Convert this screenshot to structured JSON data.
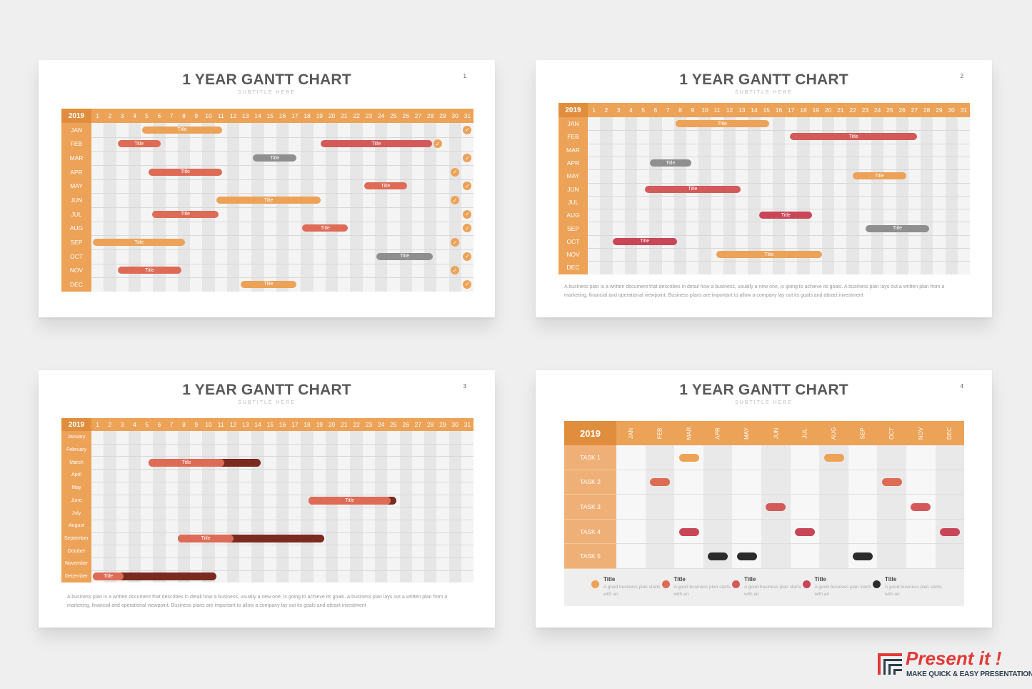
{
  "colors": {
    "orange": "#eca257",
    "coral": "#de6b55",
    "red": "#d45a5a",
    "crimson": "#c94558",
    "gray": "#8f8f8f",
    "dark": "#7a2a1e",
    "black": "#2b2b2b",
    "header": "#eca257",
    "year": "#e08e3e"
  },
  "slides": [
    {
      "title": "1 YEAR GANTT CHART",
      "subtitle": "SUBTITLE HERE",
      "number": "1",
      "year": "2019",
      "months": [
        "JAN",
        "FEB",
        "MAR",
        "APR",
        "MAY",
        "JUN",
        "JUL",
        "AUG",
        "SEP",
        "OCT",
        "NOV",
        "DEC"
      ],
      "days": [
        "1",
        "2",
        "3",
        "4",
        "5",
        "6",
        "7",
        "8",
        "9",
        "10",
        "11",
        "12",
        "13",
        "14",
        "15",
        "16",
        "17",
        "18",
        "19",
        "20",
        "21",
        "22",
        "23",
        "24",
        "25",
        "26",
        "27",
        "28",
        "29",
        "30",
        "31"
      ],
      "tasks": [
        {
          "month": 0,
          "start": 5,
          "end": 11.5,
          "color": "orange",
          "label": "Title"
        },
        {
          "month": 1,
          "start": 3,
          "end": 6.5,
          "color": "coral",
          "label": "Title"
        },
        {
          "month": 1,
          "start": 19.5,
          "end": 28.5,
          "color": "red",
          "label": "Title"
        },
        {
          "month": 2,
          "start": 14,
          "end": 17.5,
          "color": "gray",
          "label": "Title"
        },
        {
          "month": 3,
          "start": 5.5,
          "end": 11.5,
          "color": "coral",
          "label": "Title"
        },
        {
          "month": 4,
          "start": 23,
          "end": 26.5,
          "color": "coral",
          "label": "Title"
        },
        {
          "month": 5,
          "start": 11,
          "end": 19.5,
          "color": "orange",
          "label": "Title"
        },
        {
          "month": 6,
          "start": 5.8,
          "end": 11.2,
          "color": "coral",
          "label": "Title"
        },
        {
          "month": 7,
          "start": 18,
          "end": 21.7,
          "color": "coral",
          "label": "Title"
        },
        {
          "month": 8,
          "start": 1,
          "end": 8.5,
          "color": "orange",
          "label": "Title"
        },
        {
          "month": 9,
          "start": 24,
          "end": 28.6,
          "color": "gray",
          "label": "Title"
        },
        {
          "month": 10,
          "start": 3,
          "end": 8.2,
          "color": "coral",
          "label": "Title"
        },
        {
          "month": 11,
          "start": 13,
          "end": 17.5,
          "color": "orange",
          "label": "Title"
        }
      ],
      "checks": [
        {
          "month": 0,
          "day": 31
        },
        {
          "month": 1,
          "day": 28.6
        },
        {
          "month": 2,
          "day": 31
        },
        {
          "month": 3,
          "day": 30
        },
        {
          "month": 4,
          "day": 31
        },
        {
          "month": 5,
          "day": 30
        },
        {
          "month": 6,
          "day": 31
        },
        {
          "month": 7,
          "day": 31
        },
        {
          "month": 8,
          "day": 30
        },
        {
          "month": 9,
          "day": 31
        },
        {
          "month": 10,
          "day": 30
        },
        {
          "month": 11,
          "day": 31
        }
      ]
    },
    {
      "title": "1 YEAR GANTT CHART",
      "subtitle": "SUBTITLE HERE",
      "number": "2",
      "year": "2019",
      "months": [
        "JAN",
        "FEB",
        "MAR",
        "APR",
        "MAY",
        "JUN",
        "JUL",
        "AUG",
        "SEP",
        "OCT",
        "NOV",
        "DEC"
      ],
      "tasks": [
        {
          "month": 0,
          "start": 8,
          "end": 15.6,
          "color": "orange",
          "label": "Title"
        },
        {
          "month": 1,
          "start": 17.3,
          "end": 27.6,
          "color": "red",
          "label": "Title"
        },
        {
          "month": 3,
          "start": 5.9,
          "end": 9.3,
          "color": "gray",
          "label": "Title"
        },
        {
          "month": 4,
          "start": 22.4,
          "end": 26.7,
          "color": "orange",
          "label": "Title"
        },
        {
          "month": 5,
          "start": 5.5,
          "end": 13.3,
          "color": "red",
          "label": "Title"
        },
        {
          "month": 7,
          "start": 14.8,
          "end": 19.1,
          "color": "crimson",
          "label": "Title"
        },
        {
          "month": 8,
          "start": 23.4,
          "end": 28.6,
          "color": "gray",
          "label": "Title"
        },
        {
          "month": 9,
          "start": 2.9,
          "end": 8.1,
          "color": "crimson",
          "label": "Title"
        },
        {
          "month": 10,
          "start": 11.3,
          "end": 19.9,
          "color": "orange",
          "label": "Title"
        }
      ],
      "description": "A business plan is a written document that describes in detail how a business, usually a new one, is going to achieve its goals. A business plan lays out a written plan from a marketing, financial and operational viewpoint. Business plans are important to allow a company lay out its goals and attract investment"
    },
    {
      "title": "1 YEAR GANTT CHART",
      "subtitle": "SUBTITLE HERE",
      "number": "3",
      "year": "2019",
      "months": [
        "January",
        "February",
        "March",
        "April",
        "May",
        "June",
        "July",
        "August",
        "September",
        "October",
        "November",
        "December"
      ],
      "tasks": [
        {
          "month": 2,
          "start": 5.5,
          "end": 14.6,
          "progress": 0.68,
          "label": "Title"
        },
        {
          "month": 5,
          "start": 18.5,
          "end": 25.6,
          "progress": 0.94,
          "label": "Title"
        },
        {
          "month": 8,
          "start": 7.9,
          "end": 19.8,
          "progress": 0.38,
          "label": "Title"
        },
        {
          "month": 11,
          "start": 1,
          "end": 11,
          "progress": 0.25,
          "label": "Title"
        }
      ],
      "description": "A business plan is a written document that describes in detail how a business, usually a new one, is going to achieve its goals. A business plan lays out a written plan from a marketing, financial and operational viewpoint. Business plans are important to allow a company lay out its goals and attract investment"
    },
    {
      "title": "1 YEAR GANTT CHART",
      "subtitle": "SUBTITLE HERE",
      "number": "4",
      "year": "2019",
      "months": [
        "JAN",
        "FEB",
        "MAR",
        "APR",
        "MAY",
        "JUN",
        "JUL",
        "AUG",
        "SEP",
        "OCT",
        "NOV",
        "DEC"
      ],
      "rows": [
        "TASK 1",
        "TASK 2",
        "TASK 3",
        "TASK 4",
        "TASK 5"
      ],
      "marks": [
        {
          "row": 0,
          "month": 2,
          "color": "orange"
        },
        {
          "row": 0,
          "month": 7,
          "color": "orange"
        },
        {
          "row": 1,
          "month": 1,
          "color": "coral"
        },
        {
          "row": 1,
          "month": 9,
          "color": "coral"
        },
        {
          "row": 2,
          "month": 5,
          "color": "red"
        },
        {
          "row": 2,
          "month": 10,
          "color": "red"
        },
        {
          "row": 3,
          "month": 2,
          "color": "crimson"
        },
        {
          "row": 3,
          "month": 6,
          "color": "crimson"
        },
        {
          "row": 3,
          "month": 11,
          "color": "crimson"
        },
        {
          "row": 4,
          "month": 3,
          "color": "black"
        },
        {
          "row": 4,
          "month": 4,
          "color": "black"
        },
        {
          "row": 4,
          "month": 8,
          "color": "black"
        }
      ],
      "legend": [
        {
          "title": "Title",
          "text": "A good business plan starts with an",
          "color": "orange"
        },
        {
          "title": "Title",
          "text": "A good business plan starts with an",
          "color": "coral"
        },
        {
          "title": "Title",
          "text": "A good business plan starts with an",
          "color": "red"
        },
        {
          "title": "Title",
          "text": "A good business plan starts with an",
          "color": "crimson"
        },
        {
          "title": "Title",
          "text": "A good business plan starts with an",
          "color": "black"
        }
      ]
    }
  ],
  "brand": {
    "name": "Present it !",
    "tagline": "MAKE QUICK & EASY PRESENTATIONS"
  }
}
